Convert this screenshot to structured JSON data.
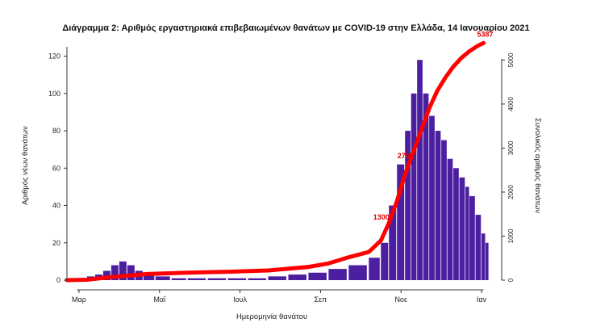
{
  "chart_data": {
    "type": "bar",
    "title": "Διάγραμμα 2: Αριθμός εργαστηριακά επιβεβαιωμένων θανάτων με COVID-19 στην Ελλάδα, 14 Ιανουαρίου 2021",
    "xlabel": "Ημερομηνία θανάτου",
    "ylabel": "Αριθμός νέων θανάτων",
    "y2label": "Συνολικός αριθμός θανάτων",
    "x_ticks": [
      "Μαρ",
      "Μαΐ",
      "Ιουλ",
      "Σεπ",
      "Νοε",
      "Ιαν"
    ],
    "y_ticks": [
      0,
      20,
      40,
      60,
      80,
      100,
      120
    ],
    "y2_ticks": [
      0,
      1000,
      2000,
      3000,
      4000,
      5000
    ],
    "ylim": [
      0,
      125
    ],
    "y2lim": [
      0,
      5300
    ],
    "x_range_months": [
      0,
      10.6
    ],
    "colors": {
      "bars": "#4b1fa0",
      "cumulative": "#ff0000"
    },
    "daily_deaths": [
      {
        "m": 0.3,
        "v": 1
      },
      {
        "m": 0.5,
        "v": 2
      },
      {
        "m": 0.7,
        "v": 3
      },
      {
        "m": 0.9,
        "v": 5
      },
      {
        "m": 1.1,
        "v": 8
      },
      {
        "m": 1.3,
        "v": 10
      },
      {
        "m": 1.5,
        "v": 8
      },
      {
        "m": 1.7,
        "v": 5
      },
      {
        "m": 1.9,
        "v": 3
      },
      {
        "m": 2.2,
        "v": 2
      },
      {
        "m": 2.6,
        "v": 1
      },
      {
        "m": 3.0,
        "v": 1
      },
      {
        "m": 3.5,
        "v": 1
      },
      {
        "m": 4.0,
        "v": 1
      },
      {
        "m": 4.5,
        "v": 1
      },
      {
        "m": 5.0,
        "v": 2
      },
      {
        "m": 5.5,
        "v": 3
      },
      {
        "m": 6.0,
        "v": 4
      },
      {
        "m": 6.5,
        "v": 6
      },
      {
        "m": 7.0,
        "v": 8
      },
      {
        "m": 7.5,
        "v": 12
      },
      {
        "m": 7.8,
        "v": 20
      },
      {
        "m": 8.0,
        "v": 40
      },
      {
        "m": 8.2,
        "v": 62
      },
      {
        "m": 8.4,
        "v": 80
      },
      {
        "m": 8.55,
        "v": 100
      },
      {
        "m": 8.7,
        "v": 118
      },
      {
        "m": 8.85,
        "v": 100
      },
      {
        "m": 9.0,
        "v": 88
      },
      {
        "m": 9.15,
        "v": 80
      },
      {
        "m": 9.3,
        "v": 75
      },
      {
        "m": 9.45,
        "v": 65
      },
      {
        "m": 9.6,
        "v": 60
      },
      {
        "m": 9.75,
        "v": 55
      },
      {
        "m": 9.9,
        "v": 50
      },
      {
        "m": 10.0,
        "v": 45
      },
      {
        "m": 10.15,
        "v": 35
      },
      {
        "m": 10.3,
        "v": 25
      },
      {
        "m": 10.4,
        "v": 20
      }
    ],
    "cumulative_deaths": [
      {
        "m": 0,
        "v": 0
      },
      {
        "m": 0.5,
        "v": 10
      },
      {
        "m": 1,
        "v": 60
      },
      {
        "m": 1.5,
        "v": 100
      },
      {
        "m": 2,
        "v": 140
      },
      {
        "m": 3,
        "v": 170
      },
      {
        "m": 4,
        "v": 190
      },
      {
        "m": 5,
        "v": 220
      },
      {
        "m": 6,
        "v": 300
      },
      {
        "m": 6.5,
        "v": 380
      },
      {
        "m": 7,
        "v": 520
      },
      {
        "m": 7.5,
        "v": 640
      },
      {
        "m": 7.8,
        "v": 900
      },
      {
        "m": 8.0,
        "v": 1300
      },
      {
        "m": 8.2,
        "v": 1800
      },
      {
        "m": 8.4,
        "v": 2400
      },
      {
        "m": 8.6,
        "v": 2900
      },
      {
        "m": 8.8,
        "v": 3400
      },
      {
        "m": 9.0,
        "v": 3900
      },
      {
        "m": 9.2,
        "v": 4300
      },
      {
        "m": 9.4,
        "v": 4600
      },
      {
        "m": 9.6,
        "v": 4850
      },
      {
        "m": 9.8,
        "v": 5050
      },
      {
        "m": 10.0,
        "v": 5200
      },
      {
        "m": 10.2,
        "v": 5320
      },
      {
        "m": 10.35,
        "v": 5387
      }
    ],
    "annotations": [
      {
        "m": 7.85,
        "v": 1300,
        "text": "1300"
      },
      {
        "m": 8.45,
        "v": 2700,
        "text": "2700"
      },
      {
        "m": 10.35,
        "v": 5387,
        "text": "5387"
      }
    ]
  }
}
